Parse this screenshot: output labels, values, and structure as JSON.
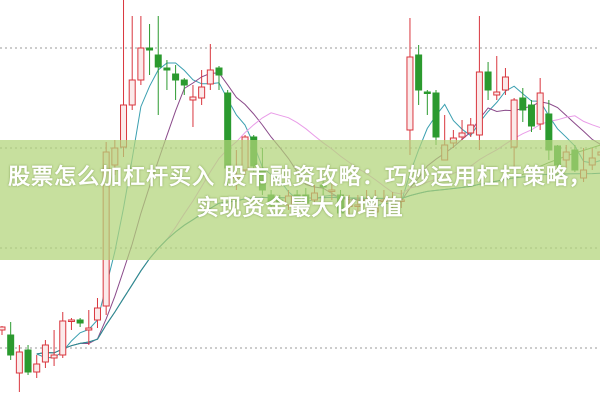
{
  "title": "股票怎么加杠杆买入 股市融资攻略：巧妙运用杠杆策略，实现资金最大化增值",
  "colors": {
    "up": "#d9363e",
    "down": "#2b9a2f",
    "ma5": "#3a9fb0",
    "ma10": "#8a4a8a",
    "ma20": "#e99ce8",
    "ma60": "#5a9a4a",
    "ma120": "#2a8a9a",
    "grid": "#999999",
    "banner": "#b2d478"
  },
  "chart_data": {
    "type": "candlestick",
    "grid": true,
    "moving_averages": [
      5,
      10,
      20,
      60,
      120
    ],
    "candles": [
      [
        7.0,
        7.3,
        7.4,
        6.5
      ],
      [
        6.5,
        4.5,
        7.8,
        4.0
      ],
      [
        2.7,
        4.8,
        5.5,
        0.8
      ],
      [
        5.0,
        2.8,
        5.5,
        2.5
      ],
      [
        2.8,
        3.6,
        4.5,
        2.2
      ],
      [
        3.8,
        5.5,
        6.0,
        3.2
      ],
      [
        4.2,
        4.5,
        7.0,
        3.4
      ],
      [
        4.5,
        7.9,
        8.8,
        4.2
      ],
      [
        8.0,
        8.0,
        8.2,
        7.0
      ],
      [
        8.0,
        7.7,
        8.2,
        7.3
      ],
      [
        7.0,
        7.2,
        9.0,
        5.5
      ],
      [
        8.0,
        9.2,
        10.2,
        7.2
      ],
      [
        9.4,
        24.8,
        25.8,
        8.5
      ],
      [
        23.5,
        25.2,
        26.0,
        22.5
      ],
      [
        25.3,
        29.5,
        40.0,
        24.3
      ],
      [
        29.5,
        32.0,
        38.4,
        29.0
      ],
      [
        32.0,
        35.2,
        38.4,
        31.5
      ],
      [
        35.2,
        35.0,
        37.6,
        32.5
      ],
      [
        34.5,
        33.3,
        38.4,
        28.5
      ],
      [
        33.2,
        33.0,
        34.0,
        31.0
      ],
      [
        32.6,
        32.0,
        33.5,
        30.0
      ],
      [
        32.0,
        31.5,
        32.2,
        30.5
      ],
      [
        30.0,
        30.3,
        31.5,
        27.3
      ],
      [
        30.2,
        31.3,
        33.0,
        29.5
      ],
      [
        31.6,
        33.0,
        35.6,
        31.0
      ],
      [
        33.2,
        32.5,
        33.4,
        31.0
      ],
      [
        30.7,
        23.2,
        31.0,
        21.5
      ],
      [
        22.2,
        22.5,
        25.0,
        21.0
      ],
      [
        23.0,
        26.3,
        26.5,
        22.5
      ],
      [
        26.3,
        23.4,
        26.5,
        22.8
      ],
      [
        23.0,
        21.0,
        25.2,
        20.5
      ],
      [
        20.5,
        19.5,
        21.0,
        19.0
      ],
      [
        20.0,
        19.8,
        20.5,
        19.5
      ],
      [
        19.5,
        20.4,
        21.0,
        19.0
      ],
      [
        20.5,
        19.7,
        21.0,
        19.0
      ],
      [
        20.5,
        19.7,
        21.2,
        19.2
      ],
      [
        20.0,
        20.7,
        21.5,
        19.5
      ],
      [
        21.5,
        21.3,
        22.0,
        20.5
      ],
      [
        21.0,
        21.0,
        22.0,
        20.0
      ],
      [
        20.5,
        18.7,
        21.0,
        18.2
      ],
      [
        19.5,
        19.5,
        20.5,
        18.5
      ],
      [
        19.5,
        19.5,
        20.5,
        18.8
      ],
      [
        20.0,
        20.0,
        21.0,
        19.0
      ],
      [
        18.8,
        19.2,
        21.0,
        18.5
      ],
      [
        20.0,
        20.0,
        21.0,
        19.0
      ],
      [
        19.4,
        19.8,
        20.8,
        19.0
      ],
      [
        20.0,
        20.0,
        21.0,
        19.2
      ],
      [
        27.0,
        34.3,
        38.2,
        24.5
      ],
      [
        34.5,
        31.0,
        35.5,
        29.5
      ],
      [
        30.8,
        30.7,
        31.0,
        28.5
      ],
      [
        30.7,
        26.3,
        31.0,
        25.5
      ],
      [
        24.0,
        25.5,
        28.5,
        24.0
      ],
      [
        25.7,
        26.2,
        27.0,
        25.2
      ],
      [
        26.3,
        26.7,
        28.0,
        26.0
      ],
      [
        26.7,
        27.5,
        28.2,
        26.3
      ],
      [
        26.5,
        32.8,
        38.4,
        25.0
      ],
      [
        32.8,
        31.0,
        33.8,
        30.0
      ],
      [
        30.5,
        30.8,
        34.4,
        30.0
      ],
      [
        31.0,
        32.3,
        33.2,
        30.5
      ],
      [
        25.3,
        30.0,
        30.2,
        23.2
      ],
      [
        30.2,
        29.0,
        31.2,
        27.8
      ],
      [
        29.5,
        27.4,
        30.0,
        26.8
      ],
      [
        27.6,
        30.7,
        32.2,
        27.0
      ],
      [
        28.6,
        25.0,
        30.0,
        24.0
      ],
      [
        25.4,
        23.5,
        25.5,
        23.2
      ],
      [
        24.0,
        24.8,
        25.5,
        23.2
      ],
      [
        25.0,
        23.0,
        25.5,
        22.8
      ],
      [
        22.2,
        23.0,
        25.2,
        21.8
      ],
      [
        23.5,
        24.2,
        25.2,
        23.0
      ],
      [
        24.5,
        24.8,
        25.5,
        24.0
      ]
    ]
  }
}
